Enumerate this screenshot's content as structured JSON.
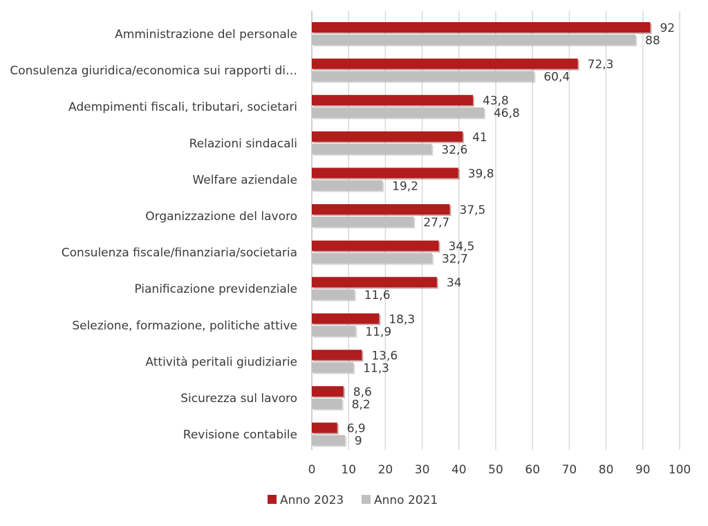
{
  "chart_data": {
    "type": "bar",
    "orientation": "horizontal",
    "categories": [
      "Amministrazione del personale",
      "Consulenza giuridica/economica sui rapporti di…",
      "Adempimenti fiscali, tributari, societari",
      "Relazioni sindacali",
      "Welfare aziendale",
      "Organizzazione del lavoro",
      "Consulenza fiscale/finanziaria/societaria",
      "Pianificazione previdenziale",
      "Selezione, formazione, politiche attive",
      "Attività peritali giudiziarie",
      "Sicurezza sul lavoro",
      "Revisione contabile"
    ],
    "series": [
      {
        "name": "Anno 2023",
        "color": "#b11c1c",
        "values": [
          92,
          72.3,
          43.8,
          41,
          39.8,
          37.5,
          34.5,
          34,
          18.3,
          13.6,
          8.6,
          6.9
        ],
        "labels": [
          "92",
          "72,3",
          "43,8",
          "41",
          "39,8",
          "37,5",
          "34,5",
          "34",
          "18,3",
          "13,6",
          "8,6",
          "6,9"
        ]
      },
      {
        "name": "Anno 2021",
        "color": "#bfbfbf",
        "values": [
          88,
          60.4,
          46.8,
          32.6,
          19.2,
          27.7,
          32.7,
          11.6,
          11.9,
          11.3,
          8.2,
          9
        ],
        "labels": [
          "88",
          "60,4",
          "46,8",
          "32,6",
          "19,2",
          "27,7",
          "32,7",
          "11,6",
          "11,9",
          "11,3",
          "8,2",
          "9"
        ]
      }
    ],
    "xlim": [
      0,
      100
    ],
    "ticks": [
      "0",
      "10",
      "20",
      "30",
      "40",
      "50",
      "60",
      "70",
      "80",
      "90",
      "100"
    ],
    "grid": true,
    "legend_position": "bottom",
    "title": "",
    "xlabel": "",
    "ylabel": ""
  }
}
